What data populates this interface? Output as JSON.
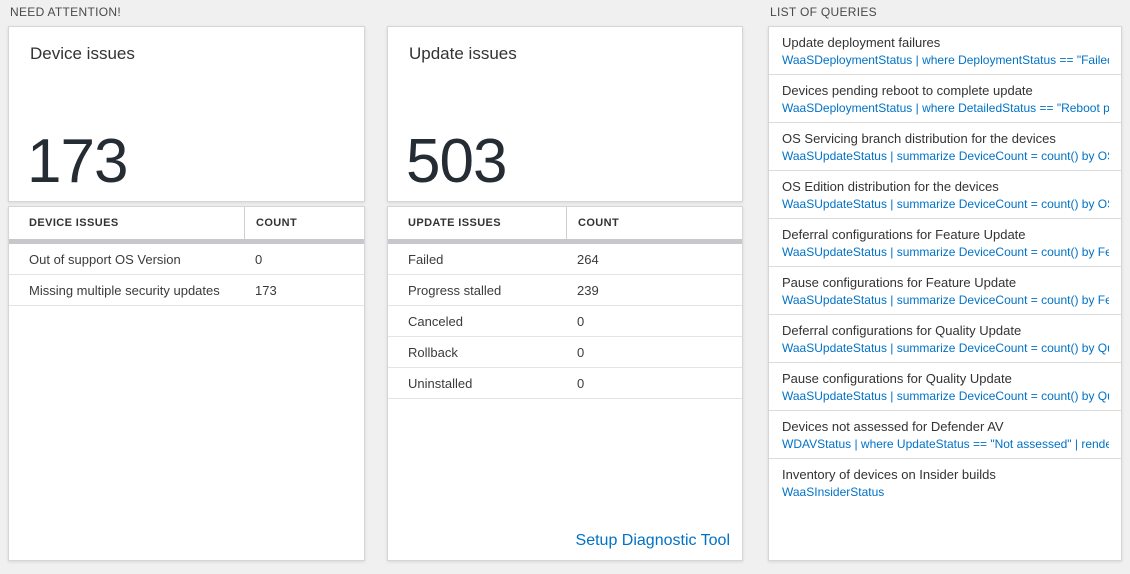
{
  "sections": {
    "need_attention": "NEED ATTENTION!",
    "queries": "LIST OF QUERIES"
  },
  "device_card": {
    "title": "Device issues",
    "count": "173",
    "table": {
      "headers": [
        "DEVICE ISSUES",
        "COUNT"
      ],
      "rows": [
        {
          "label": "Out of support OS Version",
          "count": "0"
        },
        {
          "label": "Missing multiple security updates",
          "count": "173"
        }
      ]
    }
  },
  "update_card": {
    "title": "Update issues",
    "count": "503",
    "table": {
      "headers": [
        "UPDATE ISSUES",
        "COUNT"
      ],
      "rows": [
        {
          "label": "Failed",
          "count": "264"
        },
        {
          "label": "Progress stalled",
          "count": "239"
        },
        {
          "label": "Canceled",
          "count": "0"
        },
        {
          "label": "Rollback",
          "count": "0"
        },
        {
          "label": "Uninstalled",
          "count": "0"
        }
      ]
    },
    "link_label": "Setup Diagnostic Tool"
  },
  "queries_list": [
    {
      "title": "Update deployment failures",
      "query": "WaaSDeploymentStatus | where DeploymentStatus == \"Failed\" |..."
    },
    {
      "title": "Devices pending reboot to complete update",
      "query": "WaaSDeploymentStatus | where DetailedStatus == \"Reboot pend..."
    },
    {
      "title": "OS Servicing branch distribution for the devices",
      "query": "WaaSUpdateStatus | summarize DeviceCount = count() by OSSer..."
    },
    {
      "title": "OS Edition distribution for the devices",
      "query": "WaaSUpdateStatus | summarize DeviceCount = count() by OSEdit..."
    },
    {
      "title": "Deferral configurations for Feature Update",
      "query": "WaaSUpdateStatus | summarize DeviceCount = count() by Featur..."
    },
    {
      "title": "Pause configurations for Feature Update",
      "query": "WaaSUpdateStatus | summarize DeviceCount = count() by Featur..."
    },
    {
      "title": "Deferral configurations for Quality Update",
      "query": "WaaSUpdateStatus | summarize DeviceCount = count() by Qualit..."
    },
    {
      "title": "Pause configurations for Quality Update",
      "query": "WaaSUpdateStatus | summarize DeviceCount = count() by Qualit..."
    },
    {
      "title": "Devices not assessed for Defender AV",
      "query": "WDAVStatus | where UpdateStatus == \"Not assessed\" | render ta..."
    },
    {
      "title": "Inventory of devices on Insider builds",
      "query": "WaaSInsiderStatus"
    }
  ],
  "colors": {
    "accent_blue": "#0072c6",
    "big_number": "#252c33",
    "page_background": "#f0f0f0"
  }
}
